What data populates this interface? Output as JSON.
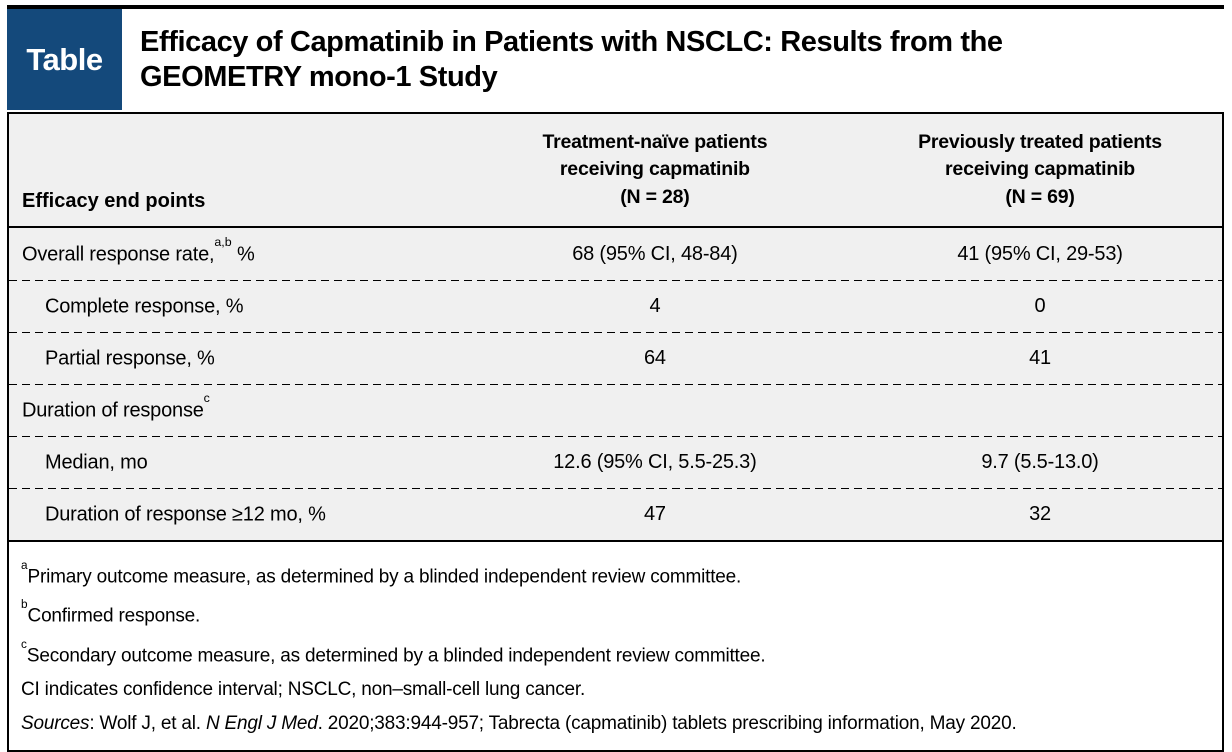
{
  "label_box": {
    "text": "Table"
  },
  "title": {
    "line1": "Efficacy of Capmatinib in Patients with NSCLC: Results from the",
    "line2": "GEOMETRY mono-1 Study"
  },
  "colors": {
    "tag_navy": "#14497B",
    "table_row_bg": "#F0F0F0",
    "border_black": "#000000",
    "footnote_bg": "#FFFFFF"
  },
  "table": {
    "header": {
      "col1": "Efficacy end points",
      "col2_lines": [
        "Treatment-naïve patients",
        "receiving capmatinib",
        "(N = 28)"
      ],
      "col3_lines": [
        "Previously treated patients",
        "receiving capmatinib",
        "(N = 69)"
      ]
    },
    "rows": [
      {
        "label": {
          "pre": "Overall response rate,",
          "sup": "a,b",
          "post": " %"
        },
        "treatment_naive": "68 (95% CI, 48-84)",
        "previously_treated": "41 (95% CI, 29-53)"
      },
      {
        "label": {
          "pre": "Complete response, %",
          "sup": "",
          "post": ""
        },
        "treatment_naive": "4",
        "previously_treated": "0"
      },
      {
        "label": {
          "pre": "Partial response, %",
          "sup": "",
          "post": ""
        },
        "treatment_naive": "64",
        "previously_treated": "41"
      },
      {
        "label": {
          "pre": "Duration of response",
          "sup": "c",
          "post": ""
        },
        "treatment_naive": "",
        "previously_treated": ""
      },
      {
        "label": {
          "pre": "Median, mo",
          "sup": "",
          "post": ""
        },
        "treatment_naive": "12.6 (95% CI, 5.5-25.3)",
        "previously_treated": "9.7 (5.5-13.0)"
      },
      {
        "label": {
          "pre": "Duration of response ≥12 mo, %",
          "sup": "",
          "post": ""
        },
        "treatment_naive": "47",
        "previously_treated": "32"
      }
    ]
  },
  "footnotes": {
    "a_marker": "a",
    "a": "Primary outcome measure, as determined by a blinded independent review committee.",
    "b_marker": "b",
    "b": "Confirmed response.",
    "c_marker": "c",
    "c": "Secondary outcome measure, as determined by a blinded independent review committee.",
    "abbreviations": "CI indicates confidence interval; NSCLC, non–small-cell lung cancer.",
    "sources": {
      "label": "Sources",
      "part1": ": Wolf J, et al. ",
      "journal": "N Engl J Med",
      "part2": ". 2020;383:944-957; Tabrecta (capmatinib) tablets prescribing information, May 2020."
    }
  }
}
